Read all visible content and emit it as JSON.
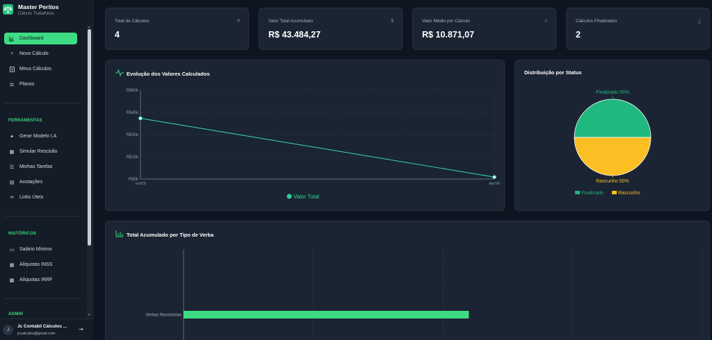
{
  "brand": {
    "title": "Master Peritos",
    "subtitle": "Cálculo Trabalhista"
  },
  "nav": [
    {
      "label": "Dashboard",
      "icon": "chart-icon",
      "active": true
    },
    {
      "label": "Novo Cálculo",
      "icon": "plus-icon"
    },
    {
      "label": "Meus Cálculos",
      "icon": "file-icon"
    },
    {
      "label": "Planos",
      "icon": "scale-icon"
    }
  ],
  "sections": {
    "ferramentas": "FERRAMENTAS",
    "historicos": "HISTÓRICOS",
    "admin": "ADMIN"
  },
  "tools": [
    {
      "label": "Gerar Modelo I.A",
      "icon": "sparkle-icon"
    },
    {
      "label": "Simular Rescisão",
      "icon": "calculator-icon"
    },
    {
      "label": "Minhas Tarefas",
      "icon": "list-icon"
    },
    {
      "label": "Anotações",
      "icon": "notes-icon"
    },
    {
      "label": "Links Úteis",
      "icon": "link-icon"
    }
  ],
  "history": [
    {
      "label": "Salário Mínimo",
      "icon": "wallet-icon"
    },
    {
      "label": "Alíquotas INSS",
      "icon": "calculator-icon"
    },
    {
      "label": "Alíquotas IRRF",
      "icon": "calculator-icon"
    }
  ],
  "user": {
    "initial": "J",
    "name": "Jc Contabil Cálculos ...",
    "email": "jccalculos@gmail.com"
  },
  "stats": [
    {
      "label": "Total de Cálculos",
      "value": "4",
      "icon": "hash-icon"
    },
    {
      "label": "Valor Total Acumulado",
      "value": "R$ 43.484,27",
      "icon": "dollar-icon"
    },
    {
      "label": "Valor Médio por Cálculo",
      "value": "R$ 10.871,07",
      "icon": "trend-icon"
    },
    {
      "label": "Cálculos Finalizados",
      "value": "2",
      "icon": "document-icon"
    }
  ],
  "line_card": {
    "title": "Evolução dos Valores Calculados"
  },
  "pie_card": {
    "title": "Distribuição por Status"
  },
  "bar_card": {
    "title": "Total Acumulado por Tipo de Verba"
  },
  "colors": {
    "accent": "#3ddc84",
    "line": "#2fd19a",
    "finalizado": "#1fb87f",
    "rascunho": "#fbbf24"
  },
  "chart_data": [
    {
      "type": "line",
      "title": "Evolução dos Valores Calculados",
      "x": [
        "out/25",
        "abr/26"
      ],
      "series": [
        {
          "name": "Valor Total",
          "values": [
            41000,
            1300
          ]
        }
      ],
      "yticks": [
        "R$0k",
        "R$15k",
        "R$30k",
        "R$45k",
        "R$60k"
      ],
      "ylim": [
        0,
        60000
      ],
      "grid": true,
      "legend": "bottom"
    },
    {
      "type": "pie",
      "title": "Distribuição por Status",
      "labels": [
        "Finalizado",
        "Rascunho"
      ],
      "values": [
        50,
        50
      ],
      "slice_labels": [
        "Finalizado 50%",
        "Rascunho 50%"
      ],
      "legend": "bottom"
    },
    {
      "type": "bar",
      "orientation": "horizontal",
      "title": "Total Acumulado por Tipo de Verba",
      "categories": [
        "Verbas Rescisórias"
      ],
      "values": [
        33000
      ],
      "xlim": [
        0,
        60000
      ],
      "grid": true
    }
  ]
}
